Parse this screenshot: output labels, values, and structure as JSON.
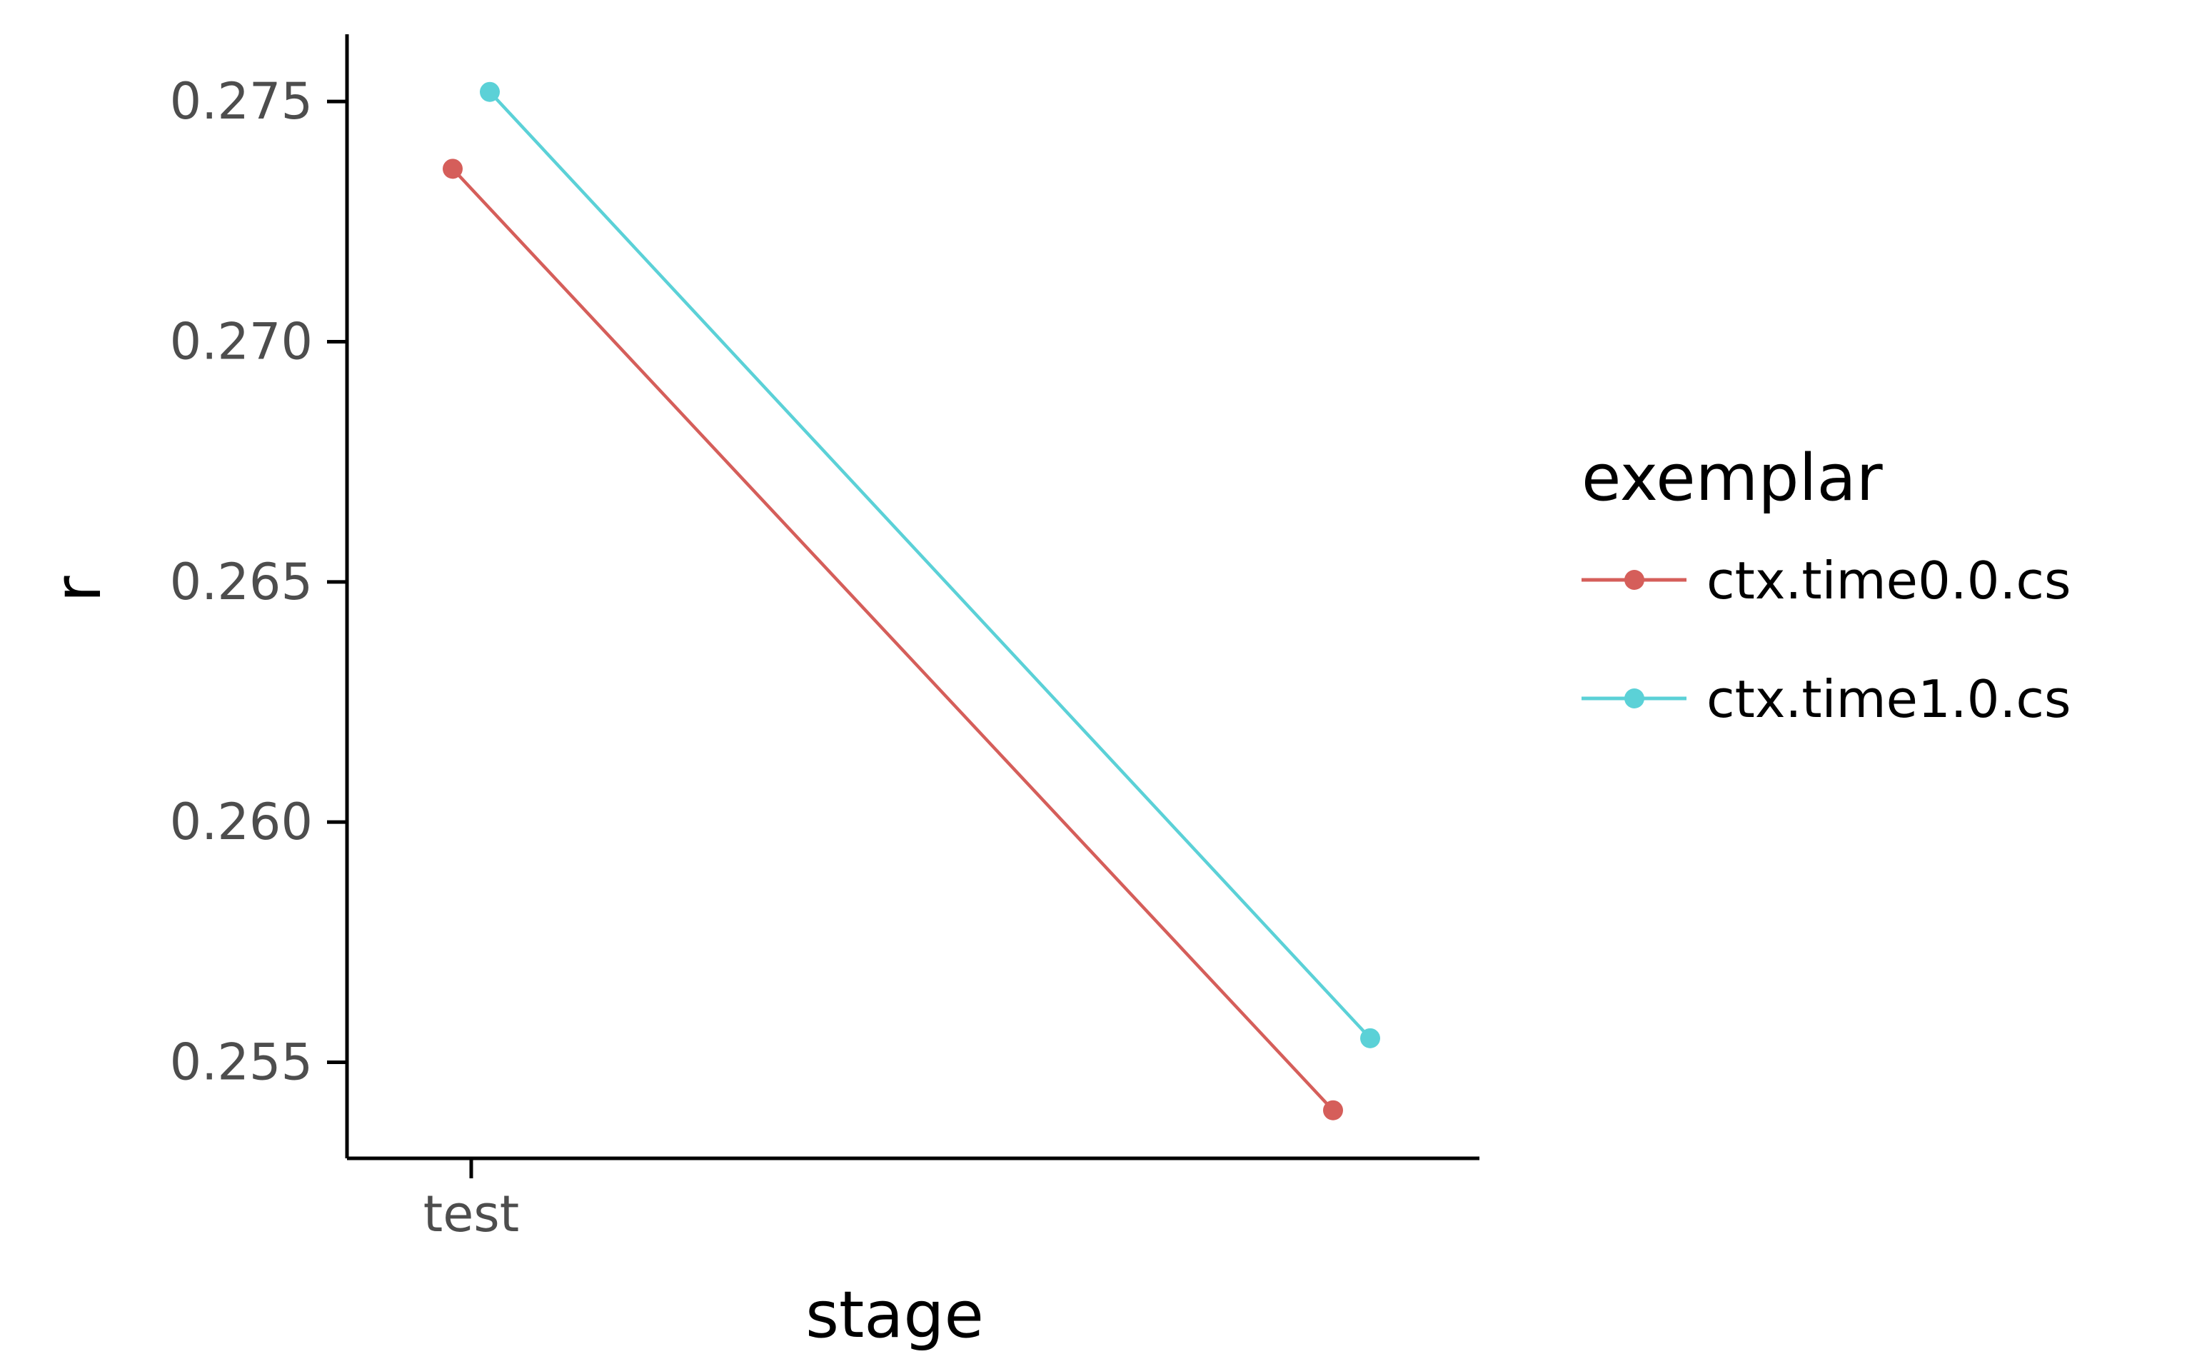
{
  "chart_data": {
    "type": "line",
    "title": "",
    "xlabel": "stage",
    "ylabel": "r",
    "categories": [
      "test"
    ],
    "ylim": [
      0.253,
      0.2764
    ],
    "yticks": [
      "0.255",
      "0.260",
      "0.265",
      "0.270",
      "0.275"
    ],
    "grid": false,
    "legend": {
      "title": "exemplar",
      "placement": "right"
    },
    "series": [
      {
        "name": "ctx.time0.0.cs",
        "color": "#d55e5a",
        "points": [
          {
            "x": "test",
            "y": 0.2736
          },
          {
            "x": "test",
            "y": 0.254
          }
        ]
      },
      {
        "name": "ctx.time1.0.cs",
        "color": "#5bd1d7",
        "points": [
          {
            "x": "test",
            "y": 0.2752
          },
          {
            "x": "test",
            "y": 0.2555
          }
        ]
      }
    ]
  }
}
